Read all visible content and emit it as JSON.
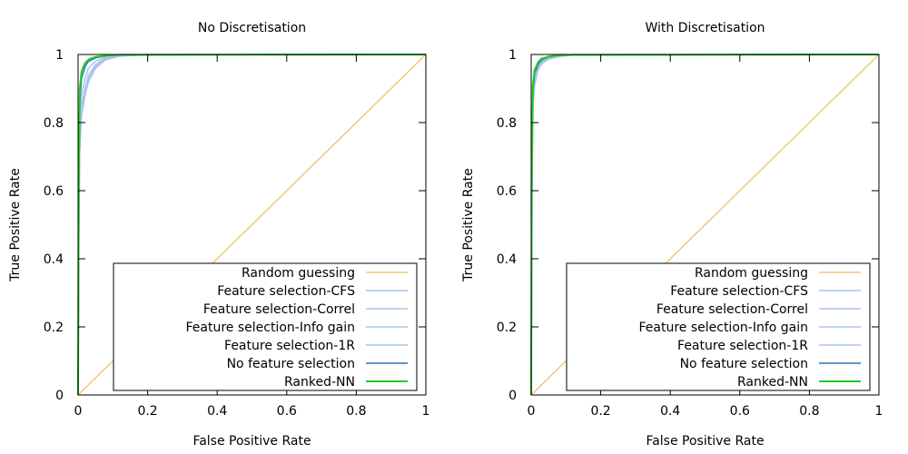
{
  "chart_data": [
    {
      "type": "line",
      "title": "No Discretisation",
      "xlabel": "False Positive Rate",
      "ylabel": "True Positive Rate",
      "xlim": [
        0,
        1
      ],
      "ylim": [
        0,
        1
      ],
      "x_ticks": [
        "0",
        "0.2",
        "0.4",
        "0.6",
        "0.8",
        "1"
      ],
      "y_ticks": [
        "0",
        "0.2",
        "0.4",
        "0.6",
        "0.8",
        "1"
      ],
      "grid": false,
      "legend_position": "bottom-right",
      "series": [
        {
          "name": "Random guessing",
          "color": "#f0c878",
          "x": [
            0,
            1
          ],
          "y": [
            0,
            1
          ]
        },
        {
          "name": "Feature selection-CFS",
          "color": "#a9c4ec",
          "x": [
            0,
            0.002,
            0.005,
            0.01,
            0.02,
            0.03,
            0.05,
            0.08,
            0.12,
            0.2,
            1
          ],
          "y": [
            0,
            0.45,
            0.72,
            0.82,
            0.88,
            0.92,
            0.96,
            0.985,
            0.995,
            0.999,
            1
          ]
        },
        {
          "name": "Feature selection-Correl",
          "color": "#a9c4ec",
          "x": [
            0,
            0.002,
            0.005,
            0.01,
            0.02,
            0.03,
            0.05,
            0.08,
            0.12,
            0.2,
            1
          ],
          "y": [
            0,
            0.5,
            0.76,
            0.85,
            0.9,
            0.94,
            0.97,
            0.99,
            0.997,
            0.999,
            1
          ]
        },
        {
          "name": "Feature selection-Info gain",
          "color": "#a9c4ec",
          "x": [
            0,
            0.002,
            0.005,
            0.01,
            0.02,
            0.03,
            0.05,
            0.08,
            0.12,
            0.2,
            1
          ],
          "y": [
            0,
            0.48,
            0.74,
            0.84,
            0.89,
            0.93,
            0.965,
            0.988,
            0.996,
            0.999,
            1
          ]
        },
        {
          "name": "Feature selection-1R",
          "color": "#a9c4ec",
          "x": [
            0,
            0.002,
            0.005,
            0.01,
            0.02,
            0.03,
            0.05,
            0.08,
            0.12,
            0.2,
            1
          ],
          "y": [
            0,
            0.55,
            0.8,
            0.88,
            0.93,
            0.96,
            0.98,
            0.993,
            0.998,
            1,
            1
          ]
        },
        {
          "name": "No feature selection",
          "color": "#2f6fb0",
          "x": [
            0,
            0.002,
            0.005,
            0.01,
            0.02,
            0.03,
            0.05,
            0.08,
            0.12,
            1
          ],
          "y": [
            0,
            0.6,
            0.86,
            0.93,
            0.965,
            0.98,
            0.99,
            0.996,
            0.999,
            1
          ]
        },
        {
          "name": "Ranked-NN",
          "color": "#22cc22",
          "x": [
            0,
            0.002,
            0.005,
            0.01,
            0.02,
            0.03,
            0.05,
            0.08,
            0.12,
            1
          ],
          "y": [
            0,
            0.65,
            0.9,
            0.95,
            0.975,
            0.985,
            0.993,
            0.997,
            0.999,
            1
          ]
        }
      ]
    },
    {
      "type": "line",
      "title": "With Discretisation",
      "xlabel": "False Positive Rate",
      "ylabel": "True Positive Rate",
      "xlim": [
        0,
        1
      ],
      "ylim": [
        0,
        1
      ],
      "x_ticks": [
        "0",
        "0.2",
        "0.4",
        "0.6",
        "0.8",
        "1"
      ],
      "y_ticks": [
        "0",
        "0.2",
        "0.4",
        "0.6",
        "0.8",
        "1"
      ],
      "grid": false,
      "legend_position": "bottom-right",
      "series": [
        {
          "name": "Random guessing",
          "color": "#f0c878",
          "x": [
            0,
            1
          ],
          "y": [
            0,
            1
          ]
        },
        {
          "name": "Feature selection-CFS",
          "color": "#a9c4ec",
          "x": [
            0,
            0.002,
            0.005,
            0.01,
            0.02,
            0.03,
            0.05,
            0.08,
            0.12,
            1
          ],
          "y": [
            0,
            0.6,
            0.85,
            0.92,
            0.96,
            0.975,
            0.988,
            0.995,
            0.999,
            1
          ]
        },
        {
          "name": "Feature selection-Correl",
          "color": "#a9c4ec",
          "x": [
            0,
            0.002,
            0.005,
            0.01,
            0.02,
            0.03,
            0.05,
            0.08,
            0.12,
            1
          ],
          "y": [
            0,
            0.62,
            0.86,
            0.93,
            0.965,
            0.978,
            0.99,
            0.996,
            0.999,
            1
          ]
        },
        {
          "name": "Feature selection-Info gain",
          "color": "#a9c4ec",
          "x": [
            0,
            0.002,
            0.005,
            0.01,
            0.02,
            0.03,
            0.05,
            0.08,
            0.12,
            1
          ],
          "y": [
            0,
            0.58,
            0.84,
            0.91,
            0.955,
            0.972,
            0.986,
            0.994,
            0.998,
            1
          ]
        },
        {
          "name": "Feature selection-1R",
          "color": "#a9c4ec",
          "x": [
            0,
            0.002,
            0.005,
            0.01,
            0.02,
            0.03,
            0.05,
            0.08,
            0.12,
            1
          ],
          "y": [
            0,
            0.63,
            0.87,
            0.935,
            0.968,
            0.98,
            0.991,
            0.996,
            0.999,
            1
          ]
        },
        {
          "name": "No feature selection",
          "color": "#2f6fb0",
          "x": [
            0,
            0.002,
            0.005,
            0.01,
            0.02,
            0.03,
            0.05,
            0.08,
            0.12,
            1
          ],
          "y": [
            0,
            0.65,
            0.89,
            0.945,
            0.972,
            0.984,
            0.993,
            0.997,
            0.999,
            1
          ]
        },
        {
          "name": "Ranked-NN",
          "color": "#22cc22",
          "x": [
            0,
            0.002,
            0.005,
            0.01,
            0.02,
            0.03,
            0.05,
            0.08,
            0.12,
            1
          ],
          "y": [
            0,
            0.68,
            0.91,
            0.955,
            0.978,
            0.988,
            0.994,
            0.998,
            0.999,
            1
          ]
        }
      ]
    }
  ]
}
